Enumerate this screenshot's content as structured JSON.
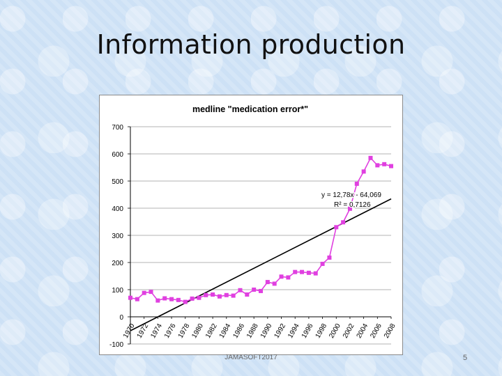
{
  "slide": {
    "title": "Information production",
    "footer": "JAMASOFT2017",
    "page_number": "5"
  },
  "chart_data": {
    "type": "line",
    "title": "medline \"medication error*\"",
    "xlabel": "",
    "ylabel": "",
    "ylim": [
      -100,
      700
    ],
    "yticks": [
      "700",
      "600",
      "500",
      "400",
      "300",
      "200",
      "100",
      "0",
      "-100"
    ],
    "ytick_values": [
      700,
      600,
      500,
      400,
      300,
      200,
      100,
      0,
      -100
    ],
    "xticks": [
      "1970",
      "1972",
      "1974",
      "1976",
      "1978",
      "1980",
      "1982",
      "1984",
      "1986",
      "1988",
      "1990",
      "1992",
      "1994",
      "1996",
      "1998",
      "2000",
      "2002",
      "2004",
      "2006",
      "2008"
    ],
    "grid": true,
    "series": [
      {
        "name": "",
        "color": "#e040e0",
        "x": [
          1970,
          1971,
          1972,
          1973,
          1974,
          1975,
          1976,
          1977,
          1978,
          1979,
          1980,
          1981,
          1982,
          1983,
          1984,
          1985,
          1986,
          1987,
          1988,
          1989,
          1990,
          1991,
          1992,
          1993,
          1994,
          1995,
          1996,
          1997,
          1998,
          1999,
          2000,
          2001,
          2002,
          2003,
          2004,
          2005,
          2006,
          2007,
          2008
        ],
        "values": [
          70,
          65,
          88,
          92,
          60,
          68,
          65,
          62,
          55,
          67,
          70,
          80,
          82,
          75,
          80,
          78,
          98,
          82,
          100,
          95,
          128,
          122,
          148,
          145,
          165,
          165,
          162,
          160,
          195,
          218,
          330,
          348,
          398,
          490,
          535,
          585,
          558,
          562,
          555
        ]
      }
    ],
    "trendline": {
      "color": "#000000",
      "equation": "y = 12,78x - 64,069",
      "r_squared": "R² = 0,7126",
      "x_range": [
        1970,
        2008
      ],
      "slope": 12.78,
      "intercept": -64.069
    }
  }
}
